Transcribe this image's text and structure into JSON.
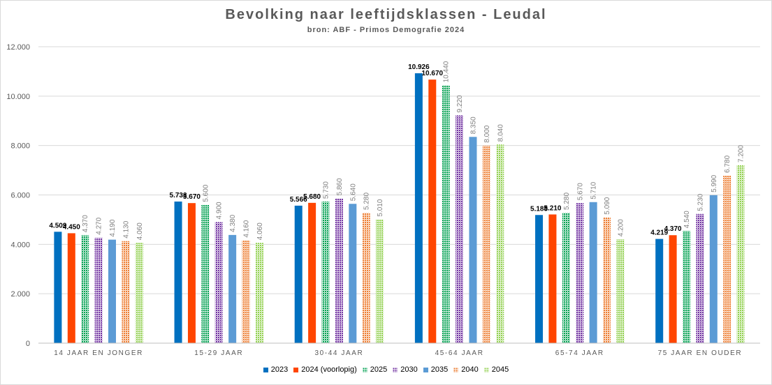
{
  "chart_data": {
    "type": "bar",
    "title": "Bevolking naar leeftijdsklassen - Leudal",
    "subtitle": "bron: ABF - Primos Demografie 2024",
    "categories": [
      "14 JAAR EN JONGER",
      "15-29 JAAR",
      "30-44 JAAR",
      "45-64 JAAR",
      "65-74 JAAR",
      "75 JAAR EN OUDER"
    ],
    "ylim": [
      0,
      12000
    ],
    "yticks": [
      0,
      2000,
      4000,
      6000,
      8000,
      10000,
      12000
    ],
    "ytick_labels": [
      "0",
      "2.000",
      "4.000",
      "6.000",
      "8.000",
      "10.000",
      "12.000"
    ],
    "grid": true,
    "legend_position": "bottom",
    "series": [
      {
        "name": "2023",
        "color": "#0070c0",
        "pattern": "solid",
        "label_style": "bold",
        "values": [
          4509,
          5733,
          5566,
          10926,
          5188,
          4219
        ],
        "labels": [
          "4.509",
          "5.733",
          "5.566",
          "10.926",
          "5.188",
          "4.219"
        ]
      },
      {
        "name": "2024 (voorlopig)",
        "color": "#ff4500",
        "pattern": "solid",
        "label_style": "bold",
        "values": [
          4450,
          5670,
          5680,
          10670,
          5210,
          4370
        ],
        "labels": [
          "4.450",
          "5.670",
          "5.680",
          "10.670",
          "5.210",
          "4.370"
        ]
      },
      {
        "name": "2025",
        "color": "#00a050",
        "pattern": "dots",
        "label_style": "rotated",
        "values": [
          4370,
          5600,
          5730,
          10440,
          5280,
          4540
        ],
        "labels": [
          "4.370",
          "5.600",
          "5.730",
          "10.440",
          "5.280",
          "4.540"
        ]
      },
      {
        "name": "2030",
        "color": "#7030a0",
        "pattern": "dots",
        "label_style": "rotated",
        "values": [
          4270,
          4900,
          5860,
          9220,
          5670,
          5230
        ],
        "labels": [
          "4.270",
          "4.900",
          "5.860",
          "9.220",
          "5.670",
          "5.230"
        ]
      },
      {
        "name": "2035",
        "color": "#5b9bd5",
        "pattern": "solid",
        "label_style": "rotated",
        "values": [
          4190,
          4380,
          5640,
          8350,
          5710,
          5990
        ],
        "labels": [
          "4.190",
          "4.380",
          "5.640",
          "8.350",
          "5.710",
          "5.990"
        ]
      },
      {
        "name": "2040",
        "color": "#ed7d31",
        "pattern": "dots",
        "label_style": "rotated",
        "values": [
          4130,
          4160,
          5280,
          8000,
          5090,
          6780
        ],
        "labels": [
          "4.130",
          "4.160",
          "5.280",
          "8.000",
          "5.090",
          "6.780"
        ]
      },
      {
        "name": "2045",
        "color": "#92d050",
        "pattern": "dots",
        "label_style": "rotated",
        "values": [
          4060,
          4060,
          5010,
          8040,
          4200,
          7200
        ],
        "labels": [
          "4.060",
          "4.060",
          "5.010",
          "8.040",
          "4.200",
          "7.200"
        ]
      }
    ]
  }
}
